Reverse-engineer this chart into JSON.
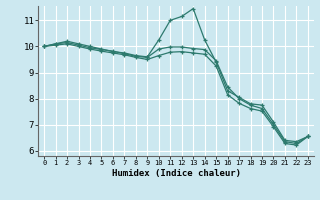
{
  "xlabel": "Humidex (Indice chaleur)",
  "background_color": "#cce8f0",
  "grid_color": "#ffffff",
  "line_color": "#2d7a6e",
  "xlim": [
    -0.5,
    23.5
  ],
  "ylim": [
    5.8,
    11.55
  ],
  "xticks": [
    0,
    1,
    2,
    3,
    4,
    5,
    6,
    7,
    8,
    9,
    10,
    11,
    12,
    13,
    14,
    15,
    16,
    17,
    18,
    19,
    20,
    21,
    22,
    23
  ],
  "yticks": [
    6,
    7,
    8,
    9,
    10,
    11
  ],
  "series": [
    [
      10.0,
      10.1,
      10.2,
      10.1,
      10.0,
      9.9,
      9.8,
      9.75,
      9.65,
      9.6,
      10.25,
      11.0,
      11.15,
      11.45,
      10.25,
      9.4,
      8.3,
      8.05,
      7.8,
      7.75,
      7.1,
      6.4,
      6.35,
      6.55
    ],
    [
      10.0,
      10.1,
      10.15,
      10.05,
      9.95,
      9.88,
      9.82,
      9.72,
      9.62,
      9.58,
      9.9,
      9.98,
      9.98,
      9.92,
      9.88,
      9.45,
      8.45,
      8.0,
      7.75,
      7.62,
      7.0,
      6.35,
      6.28,
      6.55
    ],
    [
      10.0,
      10.05,
      10.1,
      10.0,
      9.9,
      9.82,
      9.75,
      9.68,
      9.58,
      9.5,
      9.65,
      9.78,
      9.8,
      9.75,
      9.7,
      9.25,
      8.15,
      7.82,
      7.62,
      7.52,
      6.92,
      6.28,
      6.22,
      6.55
    ]
  ]
}
